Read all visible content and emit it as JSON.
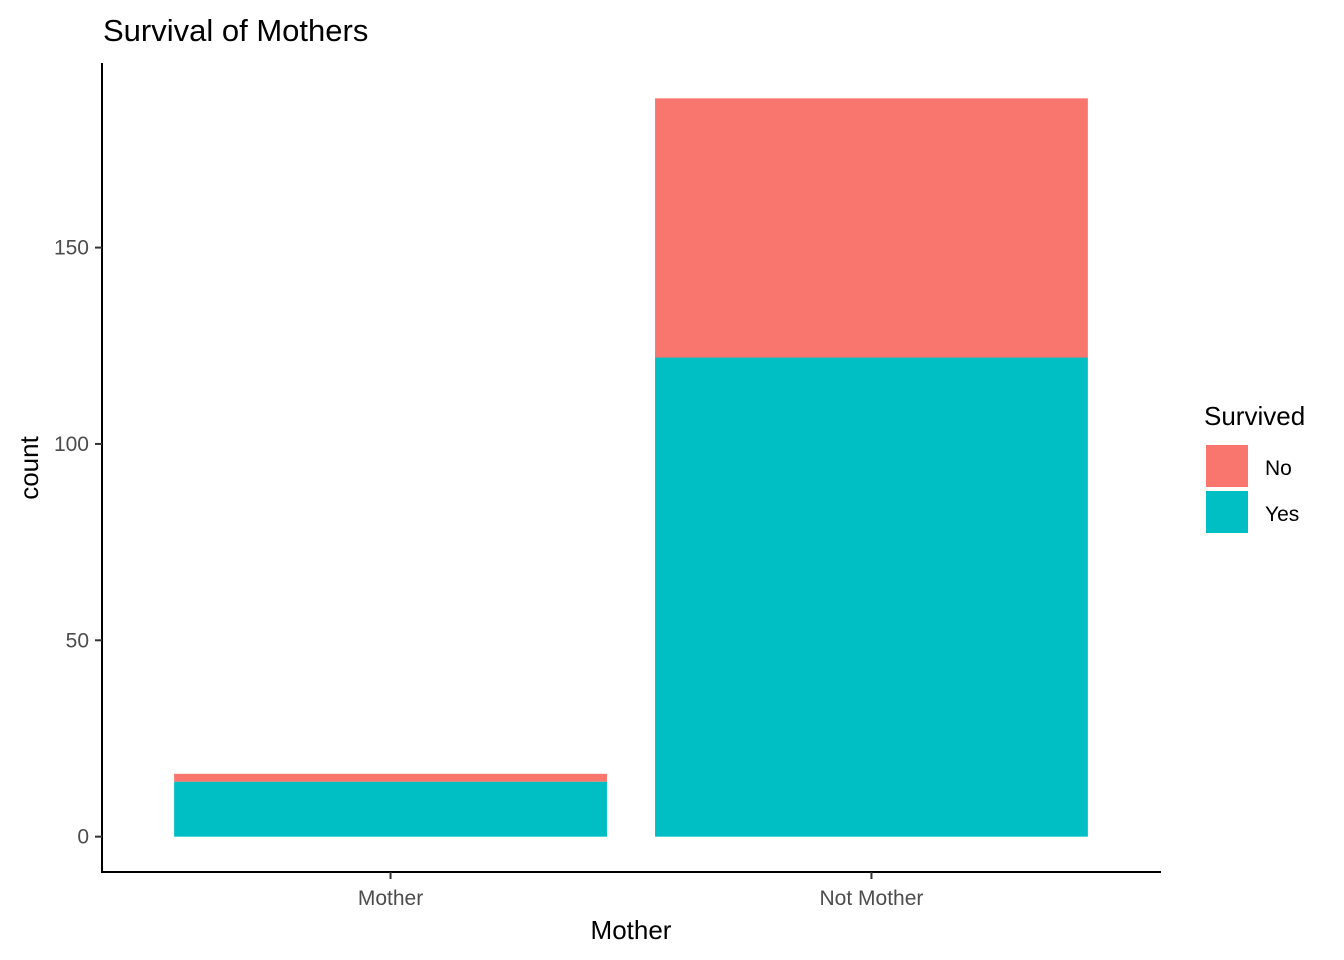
{
  "chart_data": {
    "type": "bar",
    "stacked": true,
    "title": "Survival of Mothers",
    "xlabel": "Mother",
    "ylabel": "count",
    "categories": [
      "Mother",
      "Not Mother"
    ],
    "series": [
      {
        "name": "No",
        "color": "#F8766D",
        "values": [
          2,
          66
        ]
      },
      {
        "name": "Yes",
        "color": "#00BFC4",
        "values": [
          14,
          122
        ]
      }
    ],
    "yticks": [
      0,
      50,
      100,
      150
    ],
    "ylim": [
      -9,
      197
    ],
    "legend": {
      "title": "Survived",
      "placement": "right"
    },
    "grid": false
  }
}
